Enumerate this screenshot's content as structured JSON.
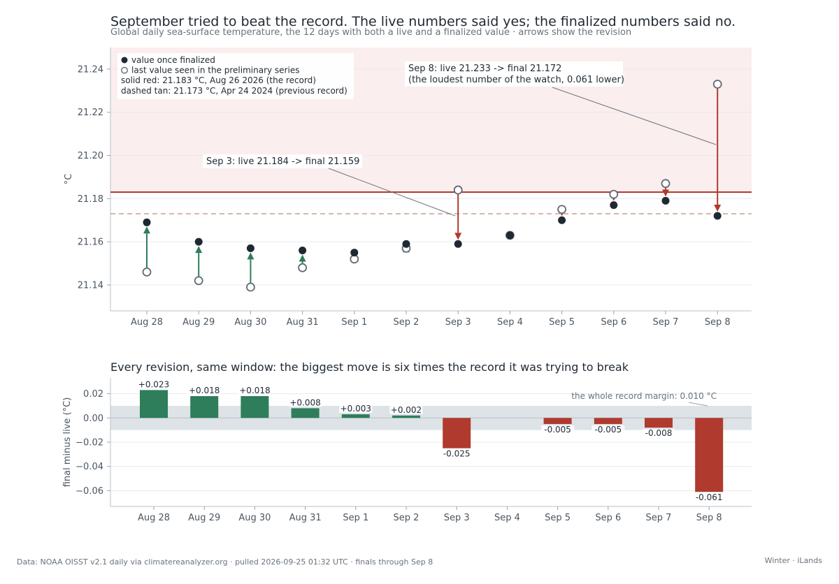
{
  "header": {
    "title": "September tried to beat the record. The live numbers said yes; the finalized numbers said no.",
    "subtitle": "Global daily sea-surface temperature, the 12 days with both a live and a finalized value · arrows show the revision"
  },
  "panel2": {
    "title": "Every revision, same window: the biggest move is six times the record it was trying to break"
  },
  "footer": {
    "source": "Data: NOAA OISST v2.1 daily via climatereanalyzer.org · pulled 2026-09-25 01:32 UTC · finals through Sep 8",
    "credit": "Winter · iLands"
  },
  "colors": {
    "finalized": "#1f2933",
    "record_line": "#b03a2e",
    "previous_record": "#c9a08a",
    "up_revision": "#2e7d5b",
    "down_revision": "#b03a2e",
    "record_zone": "#fbeeee",
    "margin_band": "#dde3e7",
    "hollow_marker": "#5f6b76"
  },
  "chart_data": [
    {
      "type": "scatter",
      "title": "",
      "xlabel": "",
      "ylabel": "°C",
      "ylim": [
        21.128,
        21.25
      ],
      "yticks": [
        21.14,
        21.16,
        21.18,
        21.2,
        21.22,
        21.24
      ],
      "ytick_labels": [
        "21.14",
        "21.16",
        "21.18",
        "21.20",
        "21.22",
        "21.24"
      ],
      "grid": true,
      "categories": [
        "Aug 28",
        "Aug 29",
        "Aug 30",
        "Aug 31",
        "Sep 1",
        "Sep 2",
        "Sep 3",
        "Sep 4",
        "Sep 5",
        "Sep 6",
        "Sep 7",
        "Sep 8"
      ],
      "series": [
        {
          "name": "value once finalized",
          "values": [
            21.169,
            21.16,
            21.157,
            21.156,
            21.155,
            21.159,
            21.159,
            21.163,
            21.17,
            21.177,
            21.179,
            21.172
          ]
        },
        {
          "name": "last value seen in the preliminary series",
          "values": [
            21.146,
            21.142,
            21.139,
            21.148,
            21.152,
            21.157,
            21.184,
            21.163,
            21.175,
            21.182,
            21.187,
            21.233
          ]
        }
      ],
      "reference_lines": [
        {
          "value": 21.183,
          "style": "solid"
        },
        {
          "value": 21.173,
          "style": "dashed"
        }
      ],
      "shaded_region": {
        "from": 21.183,
        "to": 21.25
      },
      "legend": {
        "placement": "top-left",
        "items": [
          {
            "marker": "filled",
            "label": "value once finalized"
          },
          {
            "marker": "hollow",
            "label": "last value seen in the preliminary series"
          },
          {
            "marker": "none",
            "label": "solid red: 21.183 °C, Aug 26 2026 (the record)"
          },
          {
            "marker": "none",
            "label": "dashed tan: 21.173 °C, Apr 24 2024 (previous record)"
          }
        ]
      },
      "annotations": [
        {
          "lines": [
            "Sep 3: live 21.184 -> final 21.159"
          ],
          "target_category": "Sep 3",
          "target_value": 21.172
        },
        {
          "lines": [
            "Sep 8: live 21.233 -> final 21.172",
            "(the loudest number of the watch, 0.061 lower)"
          ],
          "target_category": "Sep 8",
          "target_value": 21.205
        }
      ]
    },
    {
      "type": "bar",
      "title": "Every revision, same window: the biggest move is six times the record it was trying to break",
      "xlabel": "",
      "ylabel": "final minus live (°C)",
      "ylim": [
        -0.073,
        0.033
      ],
      "yticks": [
        0.02,
        0.0,
        -0.02,
        -0.04,
        -0.06
      ],
      "ytick_labels": [
        "0.02",
        "0.00",
        "−0.02",
        "−0.04",
        "−0.06"
      ],
      "grid": true,
      "categories": [
        "Aug 28",
        "Aug 29",
        "Aug 30",
        "Aug 31",
        "Sep 1",
        "Sep 2",
        "Sep 3",
        "Sep 4",
        "Sep 5",
        "Sep 6",
        "Sep 7",
        "Sep 8"
      ],
      "values": [
        0.023,
        0.018,
        0.018,
        0.008,
        0.003,
        0.002,
        -0.025,
        0.0,
        -0.005,
        -0.005,
        -0.008,
        -0.061
      ],
      "data_labels": [
        "+0.023",
        "+0.018",
        "+0.018",
        "+0.008",
        "+0.003",
        "+0.002",
        "-0.025",
        "",
        "-0.005",
        "-0.005",
        "-0.008",
        "-0.061"
      ],
      "band": {
        "from": -0.01,
        "to": 0.01
      },
      "band_note": "the whole record margin: 0.010 °C"
    }
  ]
}
